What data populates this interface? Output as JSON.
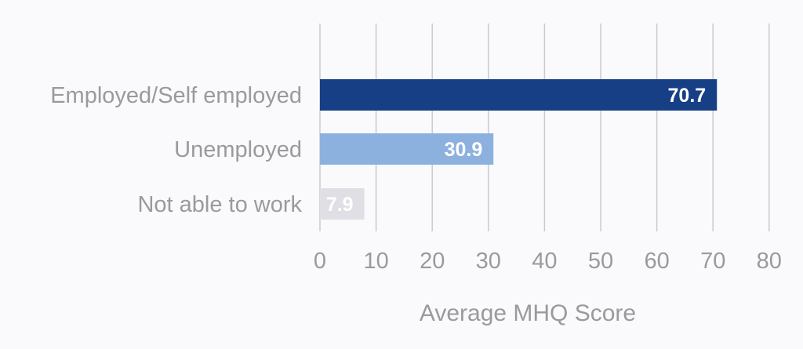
{
  "chart_data": {
    "type": "bar",
    "orientation": "horizontal",
    "categories": [
      "Employed/Self employed",
      "Unemployed",
      "Not able to work"
    ],
    "values": [
      70.7,
      30.9,
      7.9
    ],
    "value_labels": [
      "70.7",
      "30.9",
      "7.9"
    ],
    "colors": [
      "#173f86",
      "#8db1df",
      "#dfdfe5"
    ],
    "xlabel": "Average MHQ Score",
    "xlim": [
      0,
      80
    ],
    "xticks": [
      0,
      10,
      20,
      30,
      40,
      50,
      60,
      70,
      80
    ],
    "xtick_labels": [
      "0",
      "10",
      "20",
      "30",
      "40",
      "50",
      "60",
      "70",
      "80"
    ],
    "grid": "vertical",
    "legend": "none",
    "background_color": "#fafafc",
    "gridline_color": "#c9c9cf",
    "text_color": "#9a9a9e"
  }
}
